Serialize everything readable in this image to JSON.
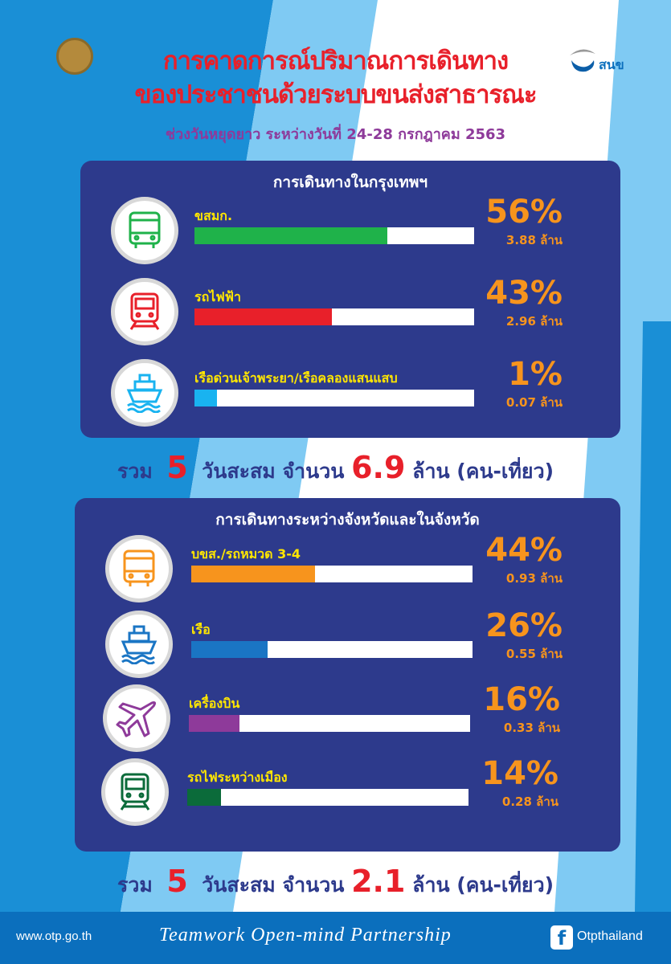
{
  "header": {
    "title_line1": "การคาดการณ์ปริมาณการเดินทาง",
    "title_line2": "ของประชาชนด้วยระบบขนส่งสาธารณะ",
    "subtitle": "ช่วงวันหยุดยาว ระหว่างวันที่ 24-28 กรกฎาคม 2563",
    "logo_right_text": "สนข"
  },
  "chart_data": [
    {
      "type": "bar",
      "title": "การเดินทางในกรุงเทพฯ",
      "categories": [
        "ขสมก.",
        "รถไฟฟ้า",
        "เรือด่วนเจ้าพระยา/เรือคลองแสนแสบ"
      ],
      "percent_labels": [
        "56%",
        "43%",
        "1%"
      ],
      "values": [
        3.88,
        2.96,
        0.07
      ],
      "value_labels": [
        "3.88 ล้าน",
        "2.96 ล้าน",
        "0.07 ล้าน"
      ],
      "unit": "ล้าน",
      "bar_fill_fraction": [
        0.69,
        0.49,
        0.08
      ],
      "colors": [
        "#1fb24a",
        "#e8202a",
        "#19b3f0"
      ],
      "icons": [
        "bus-icon",
        "train-icon",
        "ship-icon"
      ]
    },
    {
      "type": "bar",
      "title": "การเดินทางระหว่างจังหวัดและในจังหวัด",
      "categories": [
        "บขส./รถหมวด 3-4",
        "เรือ",
        "เครื่องบิน",
        "รถไฟระหว่างเมือง"
      ],
      "percent_labels": [
        "44%",
        "26%",
        "16%",
        "14%"
      ],
      "values": [
        0.93,
        0.55,
        0.33,
        0.28
      ],
      "value_labels": [
        "0.93 ล้าน",
        "0.55 ล้าน",
        "0.33 ล้าน",
        "0.28 ล้าน"
      ],
      "unit": "ล้าน",
      "bar_fill_fraction": [
        0.44,
        0.27,
        0.18,
        0.12
      ],
      "colors": [
        "#f7941d",
        "#1a75c4",
        "#8e3a9a",
        "#0b6b3a"
      ],
      "icons": [
        "bus-icon",
        "ship-icon",
        "airplane-icon",
        "train-icon"
      ]
    }
  ],
  "totals": [
    {
      "pre": "รวม",
      "days": "5",
      "mid": "วันสะสม จำนวน",
      "amount": "6.9",
      "post": "ล้าน (คน-เที่ยว)"
    },
    {
      "pre": "รวม",
      "days": "5",
      "mid": "วันสะสม จำนวน",
      "amount": "2.1",
      "post": "ล้าน (คน-เที่ยว)"
    }
  ],
  "footer": {
    "website": "www.otp.go.th",
    "slogan": "Teamwork Open-mind Partnership",
    "facebook": "Otpthailand"
  }
}
